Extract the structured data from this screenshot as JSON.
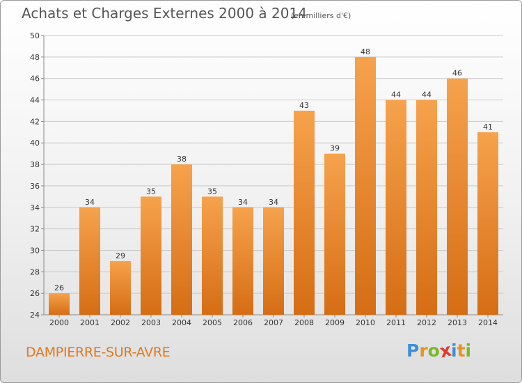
{
  "header": {
    "title": "Achats et Charges Externes 2000 à 2014",
    "subtitle": "(en milliers d'€)"
  },
  "footer": {
    "commune": "DAMPIERRE-SUR-AVRE",
    "brand_letters": [
      "P",
      "r",
      "o",
      "x",
      "i",
      "t",
      "i"
    ],
    "brand_colors": [
      "#3d8fd6",
      "#e8921e",
      "#7ab827",
      "#e03a2e",
      "#3d8fd6",
      "#e8921e",
      "#7ab827"
    ]
  },
  "chart_data": {
    "type": "bar",
    "title": "Achats et Charges Externes 2000 à 2014",
    "subtitle": "(en milliers d'€)",
    "categories": [
      "2000",
      "2001",
      "2002",
      "2003",
      "2004",
      "2005",
      "2006",
      "2007",
      "2008",
      "2009",
      "2010",
      "2011",
      "2012",
      "2013",
      "2014"
    ],
    "values": [
      26,
      34,
      29,
      35,
      38,
      35,
      34,
      34,
      43,
      39,
      48,
      44,
      44,
      46,
      41
    ],
    "ylim": [
      24,
      50
    ],
    "yticks": [
      24,
      26,
      28,
      30,
      32,
      34,
      36,
      38,
      40,
      42,
      44,
      46,
      48,
      50
    ],
    "xlabel": "",
    "ylabel": "",
    "grid": true,
    "colors": {
      "bar_top": "#f6a24c",
      "bar_bottom": "#d56d14",
      "grid": "#c8c8c8",
      "text": "#333333"
    }
  }
}
